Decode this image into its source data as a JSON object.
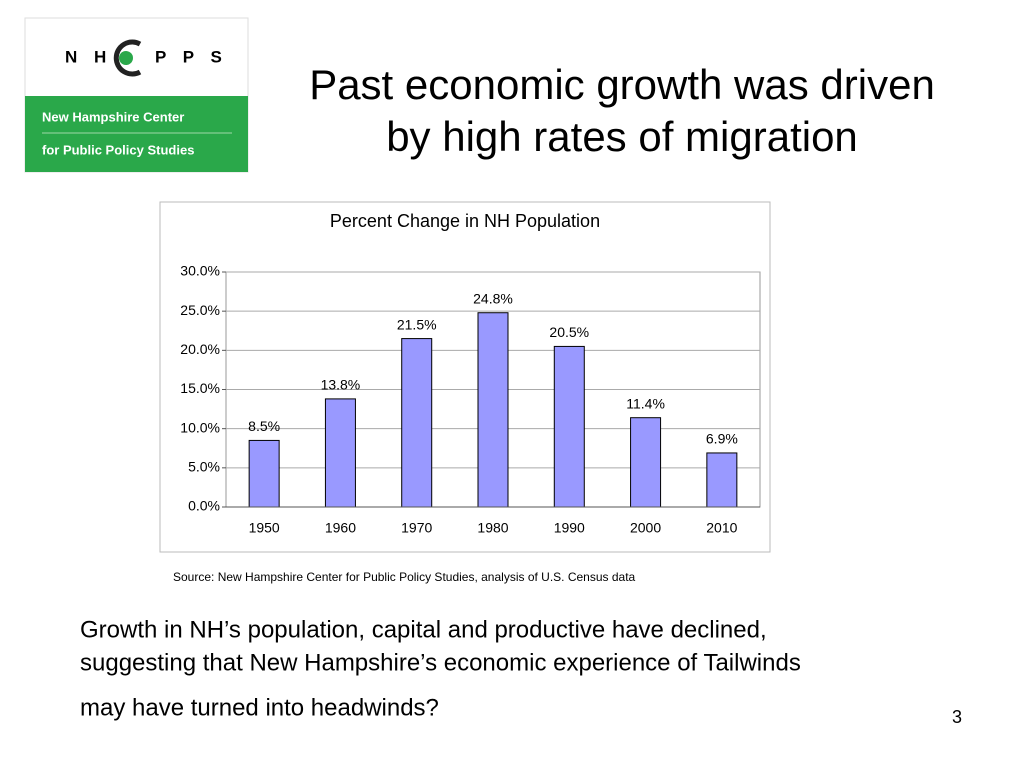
{
  "logo": {
    "letters_left": "N H",
    "letters_right": "P P S",
    "line1": "New Hampshire Center",
    "line2": "for Public Policy Studies"
  },
  "title": [
    "Past economic growth was driven",
    "by high rates of migration"
  ],
  "chart_data": {
    "type": "bar",
    "title": "Percent Change in NH Population",
    "categories": [
      "1950",
      "1960",
      "1970",
      "1980",
      "1990",
      "2000",
      "2010"
    ],
    "values": [
      8.5,
      13.8,
      21.5,
      24.8,
      20.5,
      11.4,
      6.9
    ],
    "value_labels": [
      "8.5%",
      "13.8%",
      "21.5%",
      "24.8%",
      "20.5%",
      "11.4%",
      "6.9%"
    ],
    "color": "#9999ff",
    "ylim": [
      0,
      30
    ],
    "yticks": [
      {
        "value": 0,
        "label": "0.0%"
      },
      {
        "value": 5,
        "label": "5.0%"
      },
      {
        "value": 10,
        "label": "10.0%"
      },
      {
        "value": 15,
        "label": "15.0%"
      },
      {
        "value": 20,
        "label": "20.0%"
      },
      {
        "value": 25,
        "label": "25.0%"
      },
      {
        "value": 30,
        "label": "30.0%"
      }
    ],
    "grid": true
  },
  "source": "Source: New Hampshire Center for Public Policy Studies, analysis of U.S. Census data",
  "body": [
    "Growth in NH’s population, capital and productive have declined,",
    "suggesting that New Hampshire’s economic experience of Tailwinds",
    "may have turned into headwinds?"
  ],
  "page_number": "3"
}
